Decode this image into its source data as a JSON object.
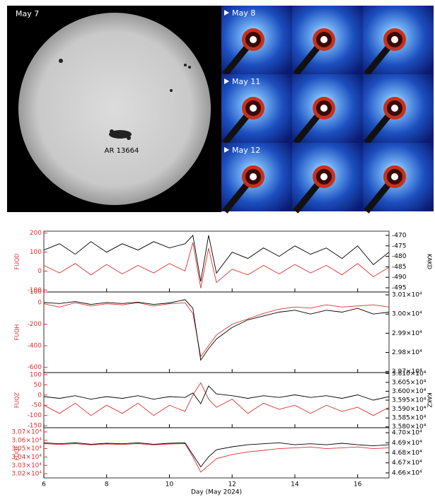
{
  "images": {
    "sun_label": "May 7",
    "region_label": "AR 13664",
    "rows": [
      "May 8",
      "May 11",
      "May 12"
    ]
  },
  "chart_data": [
    {
      "type": "line",
      "ylabel": "FUQD",
      "y2label": "KAKD",
      "x": [
        6,
        6.5,
        7,
        7.5,
        8,
        8.5,
        9,
        9.5,
        10,
        10.5,
        10.75,
        11,
        11.25,
        11.5,
        12,
        12.5,
        13,
        13.5,
        14,
        14.5,
        15,
        15.5,
        16,
        16.5,
        17
      ],
      "xlim": [
        6,
        17
      ],
      "xticks": [
        6,
        8,
        10,
        12,
        14,
        16
      ],
      "ylim": [
        -110,
        210
      ],
      "yticks": [
        200,
        100,
        0,
        -100
      ],
      "y2lim": [
        -497,
        -468
      ],
      "y2ticks": [
        -470,
        -475,
        -480,
        -485,
        -490,
        -495
      ],
      "series": [
        {
          "color": "#e03030",
          "values": [
            30,
            -10,
            40,
            -20,
            35,
            -15,
            30,
            -10,
            40,
            0,
            150,
            -90,
            120,
            -60,
            10,
            -20,
            30,
            -15,
            35,
            -10,
            30,
            -20,
            40,
            -30,
            20
          ]
        },
        {
          "color": "#000000",
          "axis": "y2",
          "values": [
            -477,
            -474,
            -479,
            -473,
            -478,
            -474,
            -477,
            -473,
            -476,
            -474,
            -470,
            -492,
            -470,
            -488,
            -478,
            -481,
            -476,
            -480,
            -475,
            -479,
            -476,
            -481,
            -475,
            -484,
            -478
          ]
        }
      ]
    },
    {
      "type": "line",
      "ylabel": "FUQH",
      "x": [
        6,
        6.5,
        7,
        7.5,
        8,
        8.5,
        9,
        9.5,
        10,
        10.5,
        10.75,
        11,
        11.25,
        11.5,
        12,
        12.5,
        13,
        13.5,
        14,
        14.5,
        15,
        15.5,
        16,
        16.5,
        17
      ],
      "xlim": [
        6,
        17
      ],
      "xticks": [
        6,
        8,
        10,
        12,
        14,
        16
      ],
      "ylim": [
        -650,
        100
      ],
      "yticks": [
        100,
        0,
        -200,
        -400,
        -600
      ],
      "y2lim": [
        29695,
        30115
      ],
      "y2ticks": [
        {
          "value": 30100,
          "label": "3.01×10⁴"
        },
        {
          "value": 30000,
          "label": "3.00×10⁴"
        },
        {
          "value": 29900,
          "label": "2.99×10⁴"
        },
        {
          "value": 29800,
          "label": "2.98×10⁴"
        },
        {
          "value": 29700,
          "label": "2.97×10⁴"
        }
      ],
      "series": [
        {
          "color": "#e03030",
          "values": [
            -10,
            -40,
            0,
            -30,
            -10,
            -20,
            0,
            -30,
            -10,
            0,
            -100,
            -500,
            -400,
            -300,
            -200,
            -150,
            -100,
            -60,
            -40,
            -50,
            -20,
            -40,
            -30,
            -20,
            -40
          ]
        },
        {
          "color": "#000000",
          "axis": "y2",
          "values": [
            30060,
            30055,
            30065,
            30050,
            30060,
            30055,
            30062,
            30050,
            30058,
            30075,
            30030,
            29760,
            29820,
            29870,
            29930,
            29970,
            29990,
            30010,
            30020,
            30000,
            30020,
            30010,
            30030,
            30000,
            30010
          ]
        }
      ]
    },
    {
      "type": "line",
      "ylabel": "FUQZ",
      "y2label": "KAKZ",
      "x": [
        6,
        6.5,
        7,
        7.5,
        8,
        8.5,
        9,
        9.5,
        10,
        10.5,
        10.75,
        11,
        11.25,
        11.5,
        12,
        12.5,
        13,
        13.5,
        14,
        14.5,
        15,
        15.5,
        16,
        16.5,
        17
      ],
      "xlim": [
        6,
        17
      ],
      "xticks": [
        6,
        8,
        10,
        12,
        14,
        16
      ],
      "ylim": [
        -160,
        110
      ],
      "yticks": [
        100,
        50,
        0,
        -50,
        -100,
        -150
      ],
      "y2lim": [
        35795,
        36105
      ],
      "y2ticks": [
        {
          "value": 36100,
          "label": "3.610×10⁴"
        },
        {
          "value": 36050,
          "label": "3.605×10⁴"
        },
        {
          "value": 36000,
          "label": "3.600×10⁴"
        },
        {
          "value": 35950,
          "label": "3.595×10⁴"
        },
        {
          "value": 35900,
          "label": "3.590×10⁴"
        },
        {
          "value": 35850,
          "label": "3.585×10⁴"
        },
        {
          "value": 35800,
          "label": "3.580×10⁴"
        }
      ],
      "series": [
        {
          "color": "#e03030",
          "values": [
            -50,
            -90,
            -40,
            -100,
            -50,
            -90,
            -40,
            -100,
            -50,
            -80,
            0,
            60,
            -20,
            -60,
            -20,
            -90,
            -40,
            -70,
            -50,
            -90,
            -50,
            -80,
            -60,
            -100,
            -60
          ]
        },
        {
          "color": "#000000",
          "axis": "y2",
          "values": [
            35970,
            35960,
            35975,
            35955,
            35970,
            35960,
            35975,
            35955,
            35970,
            35965,
            35990,
            35930,
            36030,
            35985,
            35975,
            35960,
            35975,
            35965,
            35980,
            35965,
            35975,
            35960,
            35980,
            35950,
            35970
          ]
        }
      ]
    },
    {
      "type": "line",
      "ylabel": "FUQF",
      "xlabel": "Day (May 2024)",
      "x": [
        6,
        6.5,
        7,
        7.5,
        8,
        8.5,
        9,
        9.5,
        10,
        10.5,
        10.75,
        11,
        11.25,
        11.5,
        12,
        12.5,
        13,
        13.5,
        14,
        14.5,
        15,
        15.5,
        16,
        16.5,
        17
      ],
      "xlim": [
        6,
        17
      ],
      "xticks": [
        6,
        8,
        10,
        12,
        14,
        16
      ],
      "ylim": [
        30150,
        30750
      ],
      "yticks": [
        {
          "value": 30700,
          "label": "3.07×10⁴"
        },
        {
          "value": 30600,
          "label": "3.06×10⁴"
        },
        {
          "value": 30500,
          "label": "3.05×10⁴"
        },
        {
          "value": 30400,
          "label": "3.04×10⁴"
        },
        {
          "value": 30300,
          "label": "3.03×10⁴"
        },
        {
          "value": 30200,
          "label": "3.02×10⁴"
        }
      ],
      "y2lim": [
        46550,
        47050
      ],
      "y2ticks": [
        {
          "value": 47000,
          "label": "4.70×10⁴"
        },
        {
          "value": 46900,
          "label": "4.69×10⁴"
        },
        {
          "value": 46800,
          "label": "4.68×10⁴"
        },
        {
          "value": 46700,
          "label": "4.67×10⁴"
        },
        {
          "value": 46600,
          "label": "4.66×10⁴"
        }
      ],
      "series": [
        {
          "color": "#e03030",
          "values": [
            30560,
            30550,
            30560,
            30545,
            30555,
            30550,
            30560,
            30545,
            30555,
            30560,
            30400,
            30220,
            30300,
            30380,
            30430,
            30460,
            30480,
            30500,
            30510,
            30520,
            30500,
            30510,
            30520,
            30500,
            30510
          ]
        },
        {
          "color": "#000000",
          "axis": "y2",
          "values": [
            46900,
            46890,
            46900,
            46885,
            46895,
            46890,
            46900,
            46885,
            46895,
            46900,
            46780,
            46660,
            46760,
            46830,
            46860,
            46880,
            46890,
            46900,
            46880,
            46890,
            46880,
            46895,
            46880,
            46870,
            46880
          ]
        }
      ]
    }
  ]
}
